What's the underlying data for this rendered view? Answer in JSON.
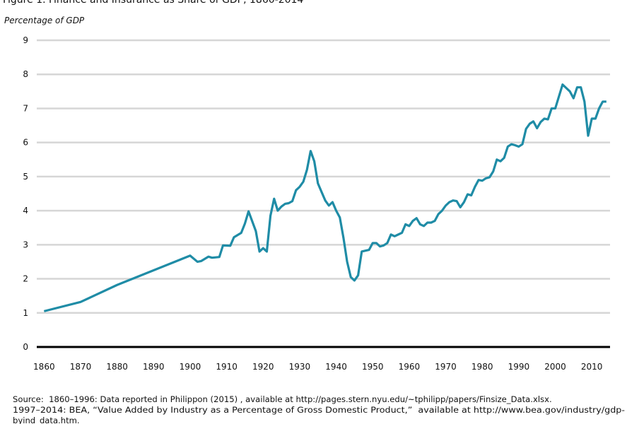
{
  "chart_data": {
    "type": "line",
    "title": "Figure 1. Finance and Insurance as Share of GDP, 1860-2014",
    "ylabel": "Percentage of GDP",
    "source": [
      "Source:  1860–1996: Data reported in Philippon (2015) , available at http://pages.stern.nyu.edu/~tphilipp/papers/Finsize_Data.xlsx.",
      "1997–2014: BEA, “Value Added by Industry as a Percentage of Gross Domestic Product,”  available at http://www.bea.gov/industry/gdp-",
      "byind_data.htm."
    ],
    "x": [
      1860,
      1870,
      1880,
      1890,
      1900,
      1902,
      1903,
      1905,
      1906,
      1908,
      1909,
      1911,
      1912,
      1914,
      1915,
      1916,
      1918,
      1919,
      1920,
      1921,
      1922,
      1923,
      1924,
      1925,
      1926,
      1927,
      1928,
      1929,
      1930,
      1931,
      1932,
      1933,
      1934,
      1935,
      1936,
      1937,
      1938,
      1939,
      1940,
      1941,
      1942,
      1943,
      1944,
      1945,
      1946,
      1947,
      1949,
      1950,
      1951,
      1952,
      1953,
      1954,
      1955,
      1956,
      1957,
      1958,
      1959,
      1960,
      1961,
      1962,
      1963,
      1964,
      1965,
      1966,
      1967,
      1968,
      1969,
      1970,
      1971,
      1972,
      1973,
      1974,
      1975,
      1976,
      1977,
      1978,
      1979,
      1980,
      1981,
      1982,
      1983,
      1984,
      1985,
      1986,
      1987,
      1988,
      1989,
      1990,
      1991,
      1992,
      1993,
      1994,
      1995,
      1996,
      1997,
      1998,
      1999,
      2000,
      2001,
      2002,
      2003,
      2004,
      2005,
      2006,
      2007,
      2008,
      2009,
      2010,
      2011,
      2012,
      2013,
      2014
    ],
    "series": [
      {
        "color": "#1f8ca6",
        "values": [
          1.05,
          1.32,
          1.82,
          2.25,
          2.68,
          2.5,
          2.52,
          2.65,
          2.62,
          2.64,
          2.98,
          2.97,
          3.22,
          3.35,
          3.62,
          3.98,
          3.4,
          2.8,
          2.9,
          2.8,
          3.85,
          4.35,
          4.0,
          4.12,
          4.2,
          4.22,
          4.28,
          4.6,
          4.7,
          4.85,
          5.2,
          5.75,
          5.45,
          4.8,
          4.55,
          4.3,
          4.15,
          4.25,
          4.0,
          3.8,
          3.2,
          2.5,
          2.05,
          1.95,
          2.1,
          2.8,
          2.85,
          3.05,
          3.05,
          2.95,
          2.98,
          3.05,
          3.3,
          3.25,
          3.3,
          3.35,
          3.6,
          3.55,
          3.7,
          3.78,
          3.6,
          3.55,
          3.65,
          3.65,
          3.7,
          3.9,
          4.0,
          4.15,
          4.25,
          4.3,
          4.28,
          4.1,
          4.25,
          4.48,
          4.45,
          4.7,
          4.9,
          4.88,
          4.95,
          4.98,
          5.15,
          5.5,
          5.45,
          5.55,
          5.88,
          5.95,
          5.92,
          5.88,
          5.95,
          6.4,
          6.55,
          6.62,
          6.42,
          6.6,
          6.7,
          6.68,
          7.0,
          7.0,
          7.35,
          7.7,
          7.6,
          7.5,
          7.3,
          7.62,
          7.62,
          7.2,
          6.2,
          6.7,
          6.7,
          7.0,
          7.2,
          7.2
        ]
      }
    ],
    "xlim": [
      1858,
      2015
    ],
    "xticks": [
      1860,
      1870,
      1880,
      1890,
      1900,
      1910,
      1920,
      1930,
      1940,
      1950,
      1960,
      1970,
      1980,
      1990,
      2000,
      2010
    ],
    "ylim": [
      0,
      9
    ],
    "yticks": [
      0,
      1,
      2,
      3,
      4,
      5,
      6,
      7,
      8,
      9
    ],
    "grid": true
  }
}
